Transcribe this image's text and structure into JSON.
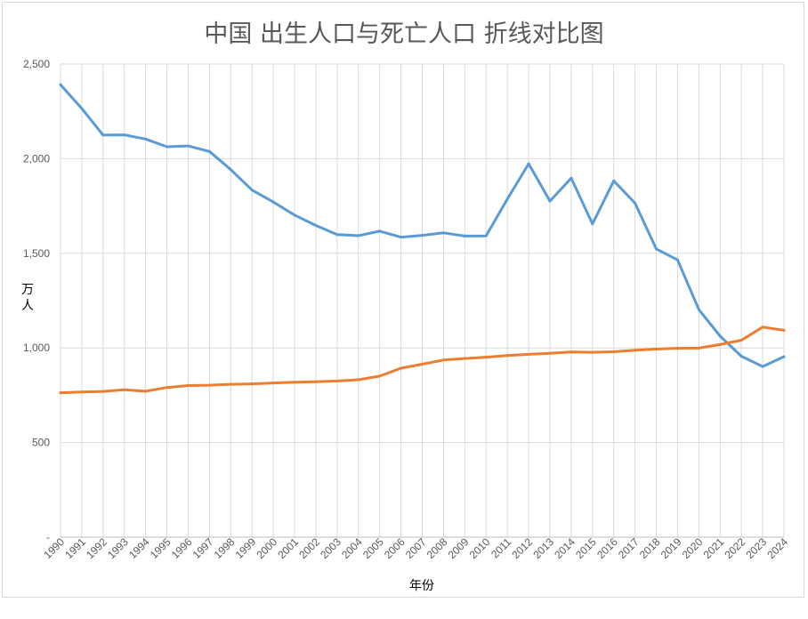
{
  "chart_data": {
    "type": "line",
    "title": "中国 出生人口与死亡人口 折线对比图",
    "xlabel": "年份",
    "ylabel": "万人",
    "ylim": [
      0,
      2500
    ],
    "y_ticks": [
      {
        "value": 0,
        "label": "-"
      },
      {
        "value": 500,
        "label": "500"
      },
      {
        "value": 1000,
        "label": "1,000"
      },
      {
        "value": 1500,
        "label": "1,500"
      },
      {
        "value": 2000,
        "label": "2,000"
      },
      {
        "value": 2500,
        "label": "2,500"
      }
    ],
    "grid": true,
    "legend": "none",
    "categories": [
      "1990",
      "1991",
      "1992",
      "1993",
      "1994",
      "1995",
      "1996",
      "1997",
      "1998",
      "1999",
      "2000",
      "2001",
      "2002",
      "2003",
      "2004",
      "2005",
      "2006",
      "2007",
      "2008",
      "2009",
      "2010",
      "2011",
      "2012",
      "2013",
      "2014",
      "2015",
      "2016",
      "2017",
      "2018",
      "2019",
      "2020",
      "2021",
      "2022",
      "2023",
      "2024"
    ],
    "series": [
      {
        "color": "#5b9bd5",
        "values": [
          2391,
          2265,
          2125,
          2126,
          2104,
          2063,
          2067,
          2038,
          1942,
          1834,
          1771,
          1702,
          1647,
          1599,
          1593,
          1617,
          1585,
          1595,
          1608,
          1591,
          1592,
          1786,
          1973,
          1776,
          1897,
          1655,
          1883,
          1765,
          1523,
          1465,
          1202,
          1062,
          956,
          902,
          954
        ]
      },
      {
        "color": "#ed7d31",
        "values": [
          763,
          767,
          770,
          779,
          771,
          791,
          801,
          803,
          808,
          810,
          815,
          819,
          821,
          825,
          832,
          851,
          893,
          914,
          936,
          944,
          951,
          960,
          966,
          972,
          979,
          977,
          980,
          988,
          994,
          998,
          999,
          1018,
          1041,
          1110,
          1093
        ]
      }
    ]
  }
}
